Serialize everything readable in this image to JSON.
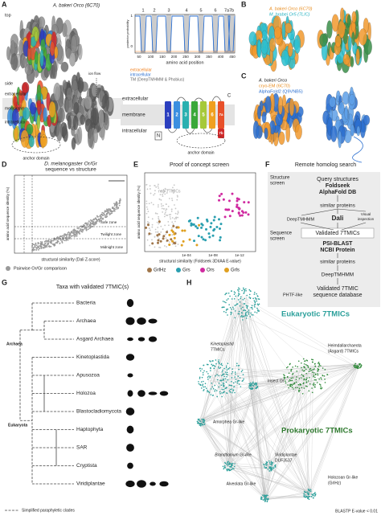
{
  "panel_a": {
    "label": "A",
    "title": "A. bakeri Orco (6C70)",
    "top": "top",
    "side": "side",
    "ion_flow": "ion flow",
    "side_labels": [
      "extracellular",
      "membrane",
      "intracellular"
    ],
    "anchor": "anchor domain",
    "plot": {
      "y_label": "posterior probability",
      "x_label": "amino acid position",
      "yticks": [
        "0",
        "1"
      ],
      "xticks": [
        "50",
        "100",
        "150",
        "200",
        "250",
        "300",
        "350",
        "400",
        "450"
      ],
      "helices": [
        "1",
        "2",
        "3",
        "4",
        "5",
        "6",
        "7a",
        "7b"
      ],
      "legend": [
        "extracellular",
        "intracellular",
        "TM (DeepTMHMM & Phobius)"
      ]
    },
    "topology": {
      "labels": [
        "extracellular",
        "membrane",
        "intracellular"
      ],
      "helices": [
        "1",
        "2",
        "3",
        "4",
        "5",
        "6",
        "7a",
        "7b"
      ],
      "n": "N",
      "c": "C",
      "anchor": "anchor domain"
    }
  },
  "panel_b": {
    "label": "B",
    "lines": [
      "A. bakeri Orco (6C70)",
      "M. hrabei Or5 (7LIC)"
    ]
  },
  "panel_c": {
    "label": "C",
    "lines": [
      "A. bakeri Orco",
      "cryo-EM (6C70)",
      "AlphaFold2 (Q9VNB5)"
    ]
  },
  "panel_d": {
    "label": "D",
    "title": [
      "D. melanogaster Or/Gr",
      "sequence vs structure"
    ],
    "y_label": "amino acid sequence identity (%)",
    "x_label": "structural similarity (Dali Z-score)",
    "zones": [
      "Safe zone",
      "Twilight zone",
      "Midnight zone"
    ],
    "legend": "Pairwise Or/Gr comparison"
  },
  "panel_e": {
    "label": "E",
    "title": "Proof of concept screen",
    "y_label": "amino acid sequence identity (%)",
    "non": "non-7TMICs",
    "xticks": [
      "1e-04",
      "1e-08",
      "1e-12"
    ],
    "x_label": "structural similarity (Foldseek 3DI/AA E-value)",
    "legend": [
      "GrlHz",
      "Grs",
      "Ors",
      "Grls"
    ]
  },
  "panel_f": {
    "label": "F",
    "title": "Remote homolog search",
    "structure_screen": [
      "Structure",
      "screen"
    ],
    "sequence_screen": [
      "Sequence",
      "screen"
    ],
    "query": "Query structures",
    "foldseek": "Foldseek",
    "afdb": "AlphaFold DB",
    "similar1": "similar proteins",
    "deeptmhmm1": "DeepTMHMM",
    "dali": "Dali",
    "visual": [
      "Visual",
      "inspection"
    ],
    "validated": "Validated 7TMICs",
    "psiblast": "PSI-BLAST",
    "ncbi": "NCBI Protein",
    "similar2": "similar proteins",
    "deeptmhmm2": "DeepTMHMM",
    "database": [
      "Validated 7TMIC",
      "sequence database"
    ]
  },
  "panel_g": {
    "label": "G",
    "title": "Taxa with validated 7TMIC(s)",
    "taxa": [
      "Bacteria",
      "Archaea",
      "Asgard Archaea",
      "Kinetoplastida",
      "Apusozoa",
      "Holozoa",
      "Blastocladiomycota",
      "Haptophyta",
      "SAR",
      "Cryptista",
      "Viridiplantae"
    ],
    "clades": [
      "Archaea",
      "Eukaryota"
    ],
    "footnote": "Simplified paraphyletic clades"
  },
  "panel_h": {
    "label": "H",
    "phtf": "PHTF-like",
    "eukaryotic": "Eukaryotic 7TMICs",
    "kinetoplastid": [
      "Kinetoplastid",
      "7TMICs"
    ],
    "heimdall": [
      "Heimdallarchaeota",
      "(Asgard) 7TMICs"
    ],
    "insect": "Insect Or",
    "amorphea": "Amorphea Gr-like",
    "prokaryotic": "Prokaryotic 7TMICs",
    "brandtionium": "Brandtionium Gr-like",
    "viridiplantae": [
      "Viridiplantae",
      "DUF3537"
    ],
    "alveolata": "Alveolata Gr-like",
    "holozoan": [
      "Holozoan Gr-like",
      "(GrlHz)"
    ],
    "blastp": "BLASTP E-value < 0.01"
  }
}
